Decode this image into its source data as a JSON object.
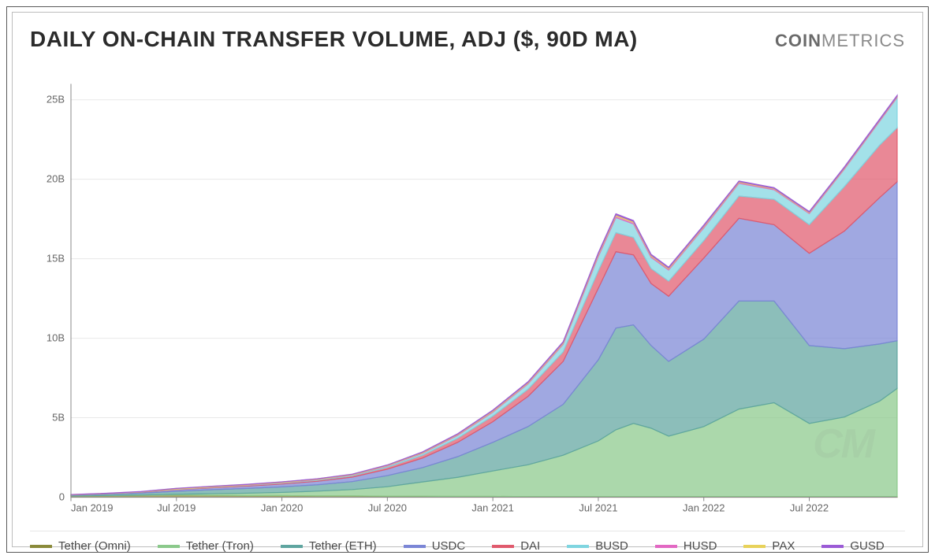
{
  "title": "DAILY ON-CHAIN TRANSFER VOLUME, ADJ ($, 90D MA)",
  "brand_bold": "COIN",
  "brand_light": "METRICS",
  "watermark": "CM",
  "chart": {
    "type": "stacked-area",
    "background_color": "#ffffff",
    "grid_color": "#e8e8e8",
    "axis_color": "#888888",
    "title_fontsize": 28,
    "label_fontsize": 13,
    "ylim": [
      0,
      26
    ],
    "ytick_step": 5,
    "ytick_labels": [
      "0",
      "5B",
      "10B",
      "15B",
      "20B",
      "25B"
    ],
    "xtick_labels": [
      "Jan 2019",
      "Jul 2019",
      "Jan 2020",
      "Jul 2020",
      "Jan 2021",
      "Jul 2021",
      "Jan 2022",
      "Jul 2022"
    ],
    "xtick_positions": [
      0,
      6,
      12,
      18,
      24,
      30,
      36,
      42
    ],
    "x_points": [
      0,
      2,
      4,
      6,
      8,
      10,
      12,
      14,
      16,
      18,
      20,
      22,
      24,
      26,
      28,
      30,
      31,
      32,
      33,
      34,
      36,
      38,
      40,
      42,
      44,
      46,
      47
    ],
    "series": [
      {
        "name": "Tether (Omni)",
        "color": "#8a8a3a",
        "values": [
          0.08,
          0.1,
          0.12,
          0.14,
          0.12,
          0.1,
          0.1,
          0.08,
          0.08,
          0.06,
          0.06,
          0.05,
          0.05,
          0.04,
          0.04,
          0.04,
          0.04,
          0.04,
          0.04,
          0.04,
          0.04,
          0.04,
          0.04,
          0.04,
          0.04,
          0.04,
          0.04
        ]
      },
      {
        "name": "Tether (Tron)",
        "color": "#8bc98b",
        "values": [
          0.0,
          0.01,
          0.02,
          0.05,
          0.1,
          0.15,
          0.2,
          0.3,
          0.4,
          0.6,
          0.9,
          1.2,
          1.6,
          2.0,
          2.6,
          3.5,
          4.2,
          4.6,
          4.3,
          3.8,
          4.4,
          5.5,
          5.9,
          4.6,
          5.0,
          6.0,
          6.8
        ]
      },
      {
        "name": "Tether (ETH)",
        "color": "#5fa5a0",
        "values": [
          0.05,
          0.08,
          0.12,
          0.18,
          0.25,
          0.3,
          0.35,
          0.4,
          0.5,
          0.7,
          0.9,
          1.3,
          1.8,
          2.4,
          3.2,
          5.1,
          6.4,
          6.2,
          5.2,
          4.7,
          5.5,
          6.8,
          6.4,
          4.9,
          4.3,
          3.6,
          3.0
        ]
      },
      {
        "name": "USDC",
        "color": "#7b86d6",
        "values": [
          0.02,
          0.04,
          0.06,
          0.1,
          0.12,
          0.15,
          0.18,
          0.22,
          0.28,
          0.4,
          0.6,
          0.9,
          1.3,
          1.9,
          2.7,
          4.5,
          4.8,
          4.4,
          3.9,
          4.1,
          5.1,
          5.2,
          4.8,
          5.8,
          7.4,
          9.2,
          10.0
        ]
      },
      {
        "name": "DAI",
        "color": "#e05a6d",
        "values": [
          0.0,
          0.0,
          0.01,
          0.02,
          0.03,
          0.04,
          0.05,
          0.06,
          0.08,
          0.12,
          0.18,
          0.26,
          0.35,
          0.45,
          0.6,
          1.1,
          1.2,
          1.1,
          0.95,
          0.95,
          1.1,
          1.4,
          1.6,
          1.8,
          2.8,
          3.3,
          3.4
        ]
      },
      {
        "name": "BUSD",
        "color": "#7fd5e0",
        "values": [
          0.0,
          0.0,
          0.0,
          0.01,
          0.01,
          0.02,
          0.03,
          0.04,
          0.05,
          0.08,
          0.12,
          0.18,
          0.25,
          0.34,
          0.48,
          0.9,
          0.95,
          0.85,
          0.7,
          0.7,
          0.8,
          0.8,
          0.6,
          0.7,
          1.1,
          1.5,
          1.9
        ]
      },
      {
        "name": "HUSD",
        "color": "#e268c3",
        "values": [
          0.0,
          0.0,
          0.0,
          0.01,
          0.01,
          0.01,
          0.02,
          0.02,
          0.02,
          0.03,
          0.03,
          0.04,
          0.05,
          0.05,
          0.06,
          0.1,
          0.1,
          0.09,
          0.08,
          0.07,
          0.07,
          0.06,
          0.05,
          0.05,
          0.05,
          0.05,
          0.05
        ]
      },
      {
        "name": "PAX",
        "color": "#e8d25a",
        "values": [
          0.01,
          0.01,
          0.02,
          0.04,
          0.04,
          0.03,
          0.03,
          0.03,
          0.03,
          0.03,
          0.04,
          0.04,
          0.05,
          0.05,
          0.06,
          0.08,
          0.08,
          0.07,
          0.06,
          0.06,
          0.06,
          0.05,
          0.04,
          0.04,
          0.04,
          0.04,
          0.04
        ]
      },
      {
        "name": "GUSD",
        "color": "#9b5bd6",
        "values": [
          0.01,
          0.01,
          0.01,
          0.01,
          0.01,
          0.01,
          0.01,
          0.01,
          0.01,
          0.01,
          0.02,
          0.02,
          0.03,
          0.03,
          0.04,
          0.06,
          0.06,
          0.05,
          0.05,
          0.05,
          0.05,
          0.04,
          0.04,
          0.04,
          0.05,
          0.05,
          0.05
        ]
      }
    ]
  },
  "legend_order": [
    "Tether (Omni)",
    "Tether (Tron)",
    "Tether (ETH)",
    "USDC",
    "DAI",
    "BUSD",
    "HUSD",
    "PAX",
    "GUSD"
  ]
}
